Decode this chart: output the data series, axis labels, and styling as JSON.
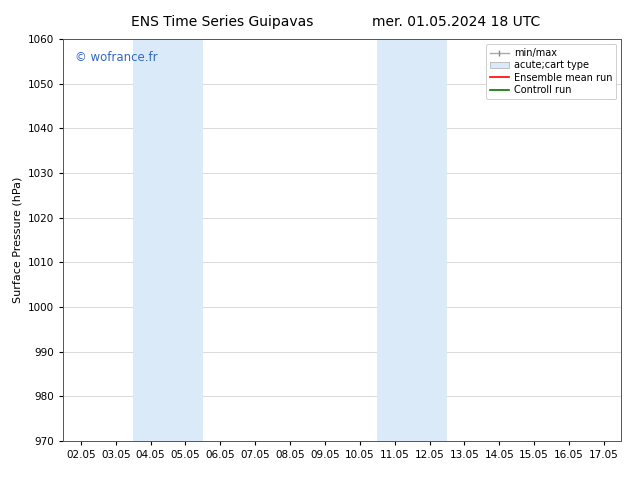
{
  "title_left": "ENS Time Series Guipavas",
  "title_right": "mer. 01.05.2024 18 UTC",
  "ylabel": "Surface Pressure (hPa)",
  "ylim": [
    970,
    1060
  ],
  "yticks": [
    970,
    980,
    990,
    1000,
    1010,
    1020,
    1030,
    1040,
    1050,
    1060
  ],
  "xlim": [
    0,
    15
  ],
  "xtick_labels": [
    "02.05",
    "03.05",
    "04.05",
    "05.05",
    "06.05",
    "07.05",
    "08.05",
    "09.05",
    "10.05",
    "11.05",
    "12.05",
    "13.05",
    "14.05",
    "15.05",
    "16.05",
    "17.05"
  ],
  "xtick_positions": [
    0,
    1,
    2,
    3,
    4,
    5,
    6,
    7,
    8,
    9,
    10,
    11,
    12,
    13,
    14,
    15
  ],
  "shaded_bands": [
    {
      "xmin": 2,
      "xmax": 4,
      "color": "#daeaf8"
    },
    {
      "xmin": 9,
      "xmax": 11,
      "color": "#daeaf8"
    }
  ],
  "watermark": "© wofrance.fr",
  "watermark_color": "#3366cc",
  "legend_entries": [
    {
      "label": "min/max",
      "type": "errorbar",
      "color": "#aaaaaa"
    },
    {
      "label": "acute;cart type",
      "type": "fill",
      "color": "#daeaf8"
    },
    {
      "label": "Ensemble mean run",
      "type": "line",
      "color": "#ff0000"
    },
    {
      "label": "Controll run",
      "type": "line",
      "color": "#007700"
    }
  ],
  "bg_color": "#ffffff",
  "grid_color": "#cccccc",
  "title_fontsize": 10,
  "tick_fontsize": 7.5,
  "ylabel_fontsize": 8,
  "legend_fontsize": 7
}
